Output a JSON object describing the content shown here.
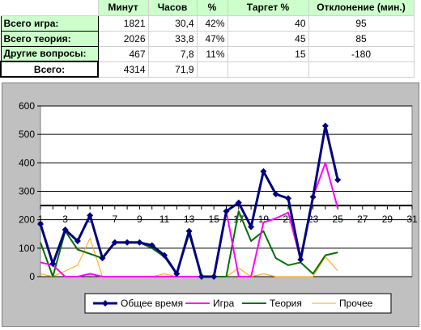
{
  "table": {
    "headers": [
      "",
      "Минут",
      "Часов",
      "%",
      "Таргет %",
      "Отклонение (мин.)"
    ],
    "rows": [
      {
        "label": "Всего игра:",
        "minutes": "1821",
        "hours": "30,4",
        "percent": "42%",
        "target": "40",
        "deviation": "95"
      },
      {
        "label": "Всего теория:",
        "minutes": "2026",
        "hours": "33,8",
        "percent": "47%",
        "target": "45",
        "deviation": "85"
      },
      {
        "label": "Другие вопросы:",
        "minutes": "467",
        "hours": "7,8",
        "percent": "11%",
        "target": "15",
        "deviation": "-180"
      }
    ],
    "total": {
      "label": "Всего:",
      "minutes": "4314",
      "hours": "71,9"
    }
  },
  "colors": {
    "label_fill": "#ccffcc",
    "chart_border_fill": "#c0c0c0",
    "series_total": "#000080",
    "series_game": "#ff00ff",
    "series_theory": "#007000",
    "series_other": "#ffa500"
  },
  "chart_data": {
    "type": "line",
    "ylim": [
      0,
      600
    ],
    "y_ticks": [
      0,
      100,
      200,
      300,
      400,
      500,
      600
    ],
    "xlim": [
      1,
      31
    ],
    "x_ticks": [
      1,
      3,
      5,
      7,
      9,
      11,
      13,
      15,
      17,
      19,
      21,
      23,
      25,
      27,
      29,
      31
    ],
    "x_axis_at_y": 250,
    "grid": true,
    "legend_position": "bottom",
    "x": [
      1,
      2,
      3,
      4,
      5,
      6,
      7,
      8,
      9,
      10,
      11,
      12,
      13,
      14,
      15,
      16,
      17,
      18,
      19,
      20,
      21,
      22,
      23,
      24,
      25
    ],
    "series": [
      {
        "name": "Общее время",
        "marker": true,
        "values": [
          185,
          45,
          165,
          125,
          215,
          65,
          120,
          120,
          120,
          110,
          75,
          10,
          160,
          0,
          0,
          230,
          260,
          175,
          370,
          290,
          275,
          60,
          280,
          530,
          340
        ]
      },
      {
        "name": "Игра",
        "marker": false,
        "values": [
          50,
          40,
          0,
          0,
          10,
          0,
          0,
          0,
          0,
          0,
          0,
          0,
          0,
          0,
          0,
          230,
          0,
          0,
          190,
          205,
          225,
          60,
          280,
          400,
          240
        ]
      },
      {
        "name": "Теория",
        "marker": false,
        "values": [
          120,
          0,
          160,
          95,
          80,
          65,
          120,
          120,
          120,
          100,
          70,
          10,
          150,
          0,
          0,
          0,
          230,
          125,
          160,
          65,
          40,
          50,
          10,
          75,
          85
        ]
      },
      {
        "name": "Прочее",
        "marker": false,
        "values": [
          10,
          0,
          20,
          40,
          135,
          0,
          0,
          0,
          0,
          0,
          10,
          0,
          0,
          0,
          0,
          0,
          30,
          0,
          10,
          0,
          0,
          0,
          0,
          70,
          20
        ]
      }
    ]
  }
}
